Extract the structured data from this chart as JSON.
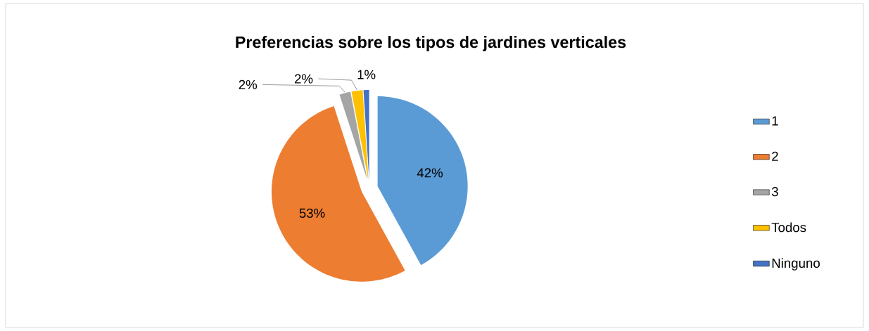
{
  "chart_data": {
    "type": "pie",
    "title": "Preferencias sobre los tipos de jardines verticales",
    "categories": [
      "1",
      "2",
      "3",
      "Todos",
      "Ninguno"
    ],
    "values": [
      42,
      53,
      2,
      2,
      1
    ],
    "colors": [
      "#5b9bd5",
      "#ed7d31",
      "#a5a5a5",
      "#ffc000",
      "#4472c4"
    ],
    "value_labels": [
      "42%",
      "53%",
      "2%",
      "2%",
      "1%"
    ],
    "legend": "right"
  }
}
